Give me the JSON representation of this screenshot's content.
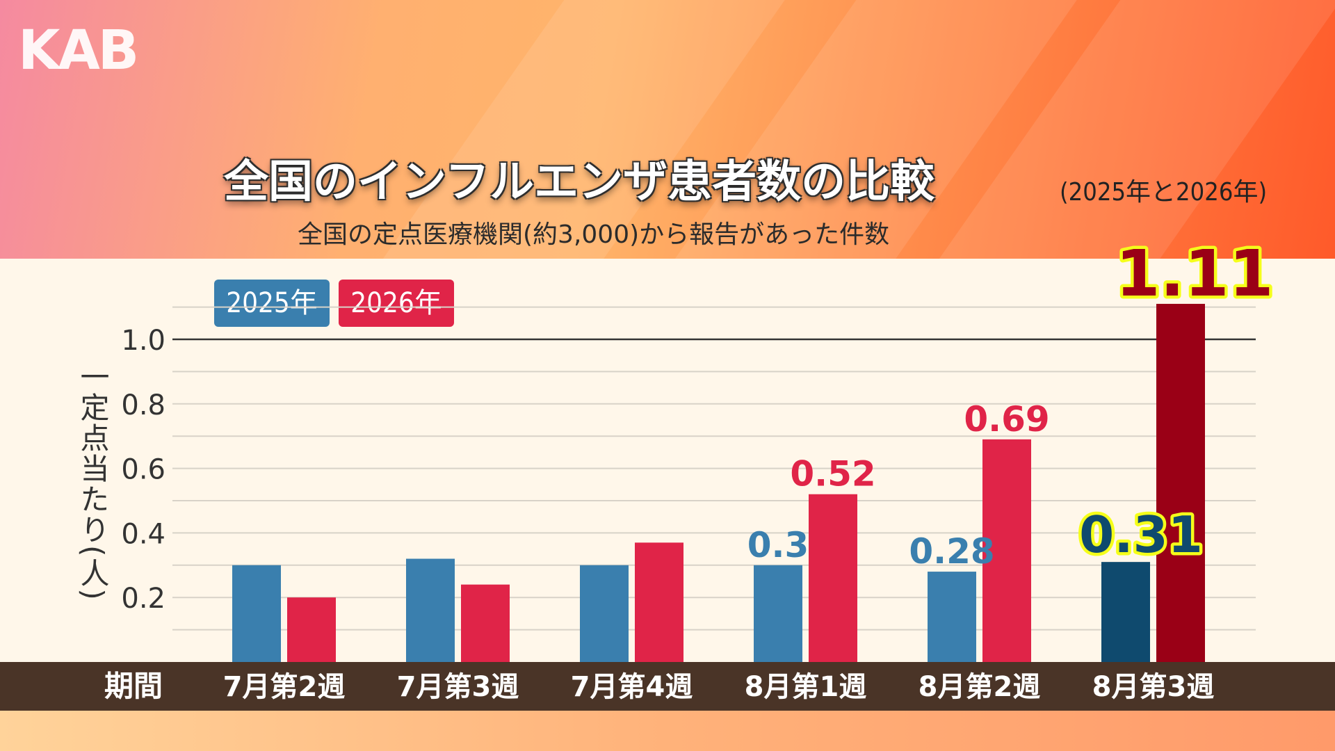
{
  "logo": {
    "text": "KAB"
  },
  "header": {
    "title": "全国のインフルエンザ患者数の比較",
    "title_note": "(2025年と2026年)",
    "subtitle": "全国の定点医療機関(約3,000)から報告があった件数"
  },
  "colors": {
    "series_2025": "#3a7fae",
    "series_2026": "#e02448",
    "highlight_2025": "#0f4a6e",
    "highlight_2026": "#9a0016",
    "highlight_label_fill": "#f5ff1a"
  },
  "chart_data": {
    "type": "bar",
    "title": "全国のインフルエンザ患者数の比較",
    "ylabel": "一定点当たり(人)",
    "xlabel": "期間",
    "ylim": [
      0.0,
      1.1
    ],
    "yticks": [
      0.2,
      0.4,
      0.6,
      0.8,
      1.0
    ],
    "yticks_labels": [
      "0.2",
      "0.4",
      "0.6",
      "0.8",
      "1.0"
    ],
    "grid": true,
    "legend_placement": "top-left",
    "categories": [
      "7月第2週",
      "7月第3週",
      "7月第4週",
      "8月第1週",
      "8月第2週",
      "8月第3週"
    ],
    "series": [
      {
        "name": "2025年",
        "values": [
          0.3,
          0.32,
          0.3,
          0.3,
          0.28,
          0.31
        ],
        "labels": [
          "",
          "",
          "",
          "0.3",
          "0.28",
          "0.31"
        ]
      },
      {
        "name": "2026年",
        "values": [
          0.2,
          0.24,
          0.37,
          0.52,
          0.69,
          1.11
        ],
        "labels": [
          "",
          "",
          "",
          "0.52",
          "0.69",
          "1.11"
        ]
      }
    ],
    "highlight_category": "8月第3週"
  }
}
